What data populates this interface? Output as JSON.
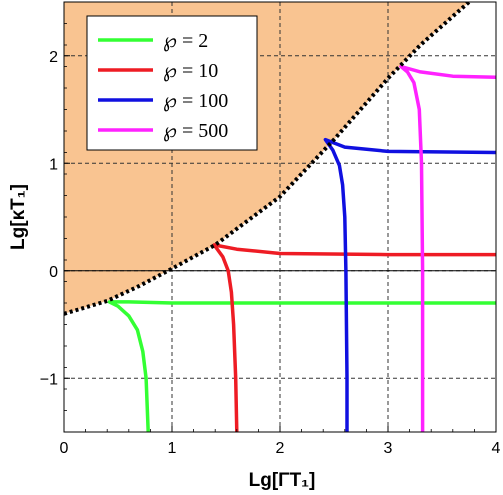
{
  "chart_data": {
    "type": "line",
    "xlabel": "Lg[ΓT₁]",
    "ylabel": "Lg[κT₁]",
    "xlim": [
      0,
      4
    ],
    "ylim": [
      -1.5,
      2.5
    ],
    "x_ticks": [
      "0",
      "1",
      "2",
      "3",
      "4"
    ],
    "y_ticks": [
      "−1",
      "0",
      "1",
      "2"
    ],
    "x_tick_values": [
      0,
      1,
      2,
      3,
      4
    ],
    "y_tick_values": [
      -1,
      0,
      1,
      2
    ],
    "grid": "dashed",
    "legend_position": "top-left",
    "shaded_region": {
      "color": "#f9c491",
      "boundary_style": "dotted",
      "boundary": [
        [
          0,
          -0.4
        ],
        [
          0.4,
          -0.28
        ],
        [
          0.7,
          -0.14
        ],
        [
          1.0,
          0.02
        ],
        [
          1.4,
          0.24
        ],
        [
          2.0,
          0.69
        ],
        [
          2.5,
          1.22
        ],
        [
          3.0,
          1.79
        ],
        [
          3.3,
          2.1
        ],
        [
          3.75,
          2.5
        ]
      ]
    },
    "series": [
      {
        "name": "℘ = 2",
        "color": "#33ff33",
        "points": [
          [
            0.78,
            -1.5
          ],
          [
            0.76,
            -1.0
          ],
          [
            0.73,
            -0.75
          ],
          [
            0.68,
            -0.55
          ],
          [
            0.6,
            -0.42
          ],
          [
            0.5,
            -0.33
          ],
          [
            0.42,
            -0.29
          ],
          [
            0.6,
            -0.29
          ],
          [
            1.0,
            -0.3
          ],
          [
            2.0,
            -0.3
          ],
          [
            3.0,
            -0.3
          ],
          [
            4.0,
            -0.3
          ]
        ]
      },
      {
        "name": "℘ = 10",
        "color": "#ee1c24",
        "points": [
          [
            1.6,
            -1.5
          ],
          [
            1.59,
            -1.0
          ],
          [
            1.57,
            -0.5
          ],
          [
            1.55,
            -0.2
          ],
          [
            1.52,
            0.0
          ],
          [
            1.47,
            0.13
          ],
          [
            1.39,
            0.24
          ],
          [
            1.6,
            0.2
          ],
          [
            2.0,
            0.16
          ],
          [
            3.0,
            0.15
          ],
          [
            4.0,
            0.15
          ]
        ]
      },
      {
        "name": "℘ = 100",
        "color": "#1010e0",
        "points": [
          [
            2.62,
            -1.5
          ],
          [
            2.62,
            -1.0
          ],
          [
            2.61,
            0.0
          ],
          [
            2.6,
            0.5
          ],
          [
            2.58,
            0.8
          ],
          [
            2.55,
            0.98
          ],
          [
            2.49,
            1.12
          ],
          [
            2.42,
            1.22
          ],
          [
            2.6,
            1.15
          ],
          [
            3.0,
            1.11
          ],
          [
            4.0,
            1.1
          ]
        ]
      },
      {
        "name": "℘ = 500",
        "color": "#ff22ff",
        "points": [
          [
            3.32,
            -1.5
          ],
          [
            3.32,
            -1.0
          ],
          [
            3.32,
            0.0
          ],
          [
            3.31,
            1.0
          ],
          [
            3.29,
            1.5
          ],
          [
            3.24,
            1.75
          ],
          [
            3.18,
            1.85
          ],
          [
            3.12,
            1.9
          ],
          [
            3.3,
            1.85
          ],
          [
            3.6,
            1.81
          ],
          [
            4.0,
            1.8
          ]
        ]
      }
    ]
  }
}
